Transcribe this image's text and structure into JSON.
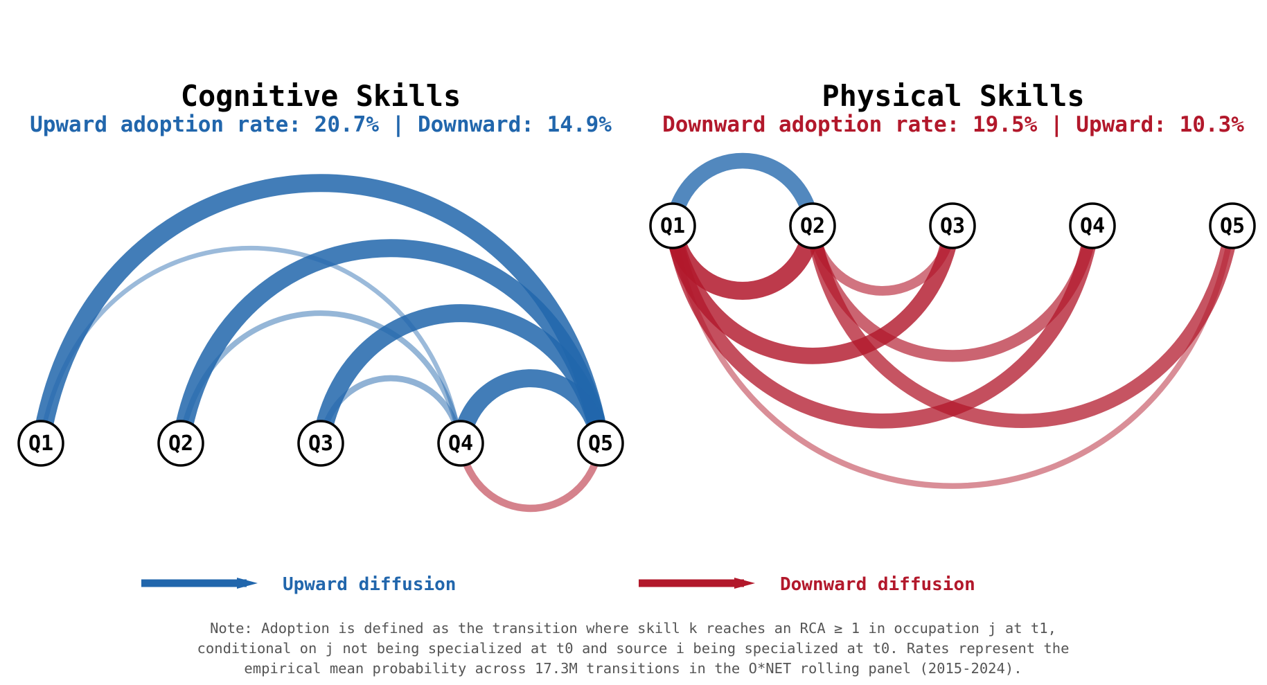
{
  "colors": {
    "upward": "#2166ac",
    "downward": "#b2182b",
    "note_text": "#555555"
  },
  "panels": [
    {
      "id": "cognitive",
      "title": "Cognitive Skills",
      "subtitle": "Upward adoption rate: 20.7% | Downward: 14.9%",
      "subtitle_color": "upward",
      "node_row": "bottom",
      "nodes": [
        "Q1",
        "Q2",
        "Q3",
        "Q4",
        "Q5"
      ],
      "flows": [
        {
          "from": "Q1",
          "to": "Q5",
          "direction": "upward",
          "strength": 1.0
        },
        {
          "from": "Q2",
          "to": "Q5",
          "direction": "upward",
          "strength": 1.0
        },
        {
          "from": "Q3",
          "to": "Q5",
          "direction": "upward",
          "strength": 1.0
        },
        {
          "from": "Q4",
          "to": "Q5",
          "direction": "upward",
          "strength": 1.0
        },
        {
          "from": "Q1",
          "to": "Q4",
          "direction": "upward",
          "strength": 0.12
        },
        {
          "from": "Q2",
          "to": "Q4",
          "direction": "upward",
          "strength": 0.18
        },
        {
          "from": "Q3",
          "to": "Q4",
          "direction": "upward",
          "strength": 0.22
        },
        {
          "from": "Q5",
          "to": "Q4",
          "direction": "downward",
          "strength": 0.3
        }
      ]
    },
    {
      "id": "physical",
      "title": "Physical Skills",
      "subtitle": "Downward adoption rate: 19.5% | Upward: 10.3%",
      "subtitle_color": "downward",
      "node_row": "top",
      "nodes": [
        "Q1",
        "Q2",
        "Q3",
        "Q4",
        "Q5"
      ],
      "flows": [
        {
          "from": "Q1",
          "to": "Q2",
          "direction": "upward",
          "strength": 0.85
        },
        {
          "from": "Q2",
          "to": "Q1",
          "direction": "downward",
          "strength": 1.0
        },
        {
          "from": "Q3",
          "to": "Q1",
          "direction": "downward",
          "strength": 0.9
        },
        {
          "from": "Q4",
          "to": "Q1",
          "direction": "downward",
          "strength": 0.8
        },
        {
          "from": "Q5",
          "to": "Q1",
          "direction": "downward",
          "strength": 0.2
        },
        {
          "from": "Q3",
          "to": "Q2",
          "direction": "downward",
          "strength": 0.45
        },
        {
          "from": "Q4",
          "to": "Q2",
          "direction": "downward",
          "strength": 0.6
        },
        {
          "from": "Q5",
          "to": "Q2",
          "direction": "downward",
          "strength": 0.75
        }
      ]
    }
  ],
  "legend": [
    {
      "label": "Upward diffusion",
      "direction": "upward"
    },
    {
      "label": "Downward diffusion",
      "direction": "downward"
    }
  ],
  "note": {
    "lines": [
      "Note: Adoption is defined as the transition where skill k reaches an RCA ≥ 1 in occupation j at t1,",
      "conditional on j not being specialized at t0 and source i being specialized at t0. Rates represent the",
      "empirical mean probability across 17.3M transitions in the O*NET rolling panel (2015-2024)."
    ]
  }
}
